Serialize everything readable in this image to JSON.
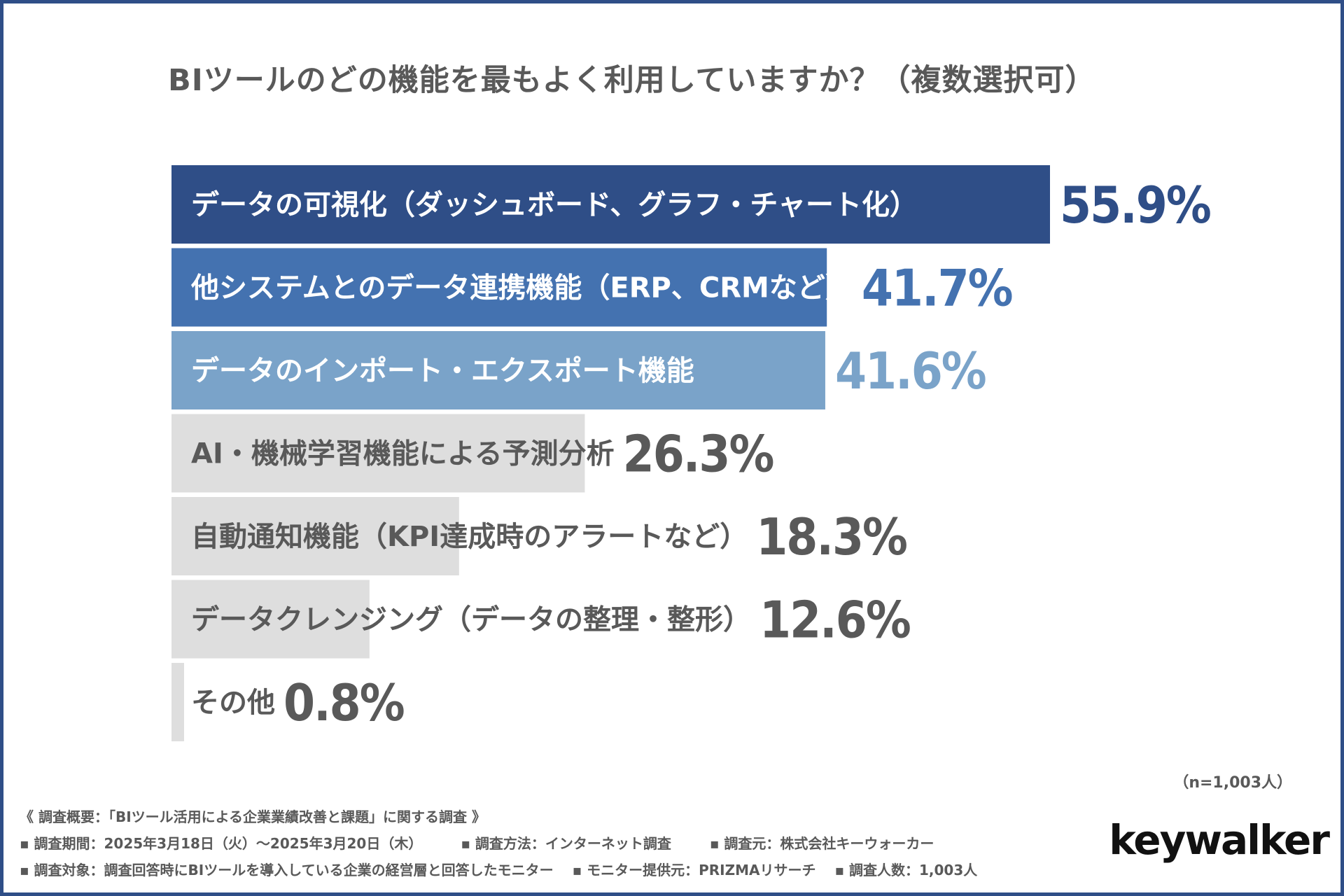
{
  "title": "BIツールのどの機能を最もよく利用していますか？（複数選択可）",
  "chart_data": {
    "type": "bar",
    "orientation": "horizontal",
    "title": "BIツールのどの機能を最もよく利用していますか？（複数選択可）",
    "categories": [
      "データの可視化（ダッシュボード、グラフ・チャート化）",
      "他システムとのデータ連携機能（ERP、CRMなど）",
      "データのインポート・エクスポート機能",
      "AI・機械学習機能による予測分析",
      "自動通知機能（KPI達成時のアラートなど）",
      "データクレンジング（データの整理・整形）",
      "その他"
    ],
    "values": [
      55.9,
      41.7,
      41.6,
      26.3,
      18.3,
      12.6,
      0.8
    ],
    "value_labels": [
      "55.9%",
      "41.7%",
      "41.6%",
      "26.3%",
      "18.3%",
      "12.6%",
      "0.8%"
    ],
    "bar_colors": [
      "#2f4e87",
      "#4472b0",
      "#7aa3c9",
      "#dedede",
      "#dedede",
      "#dedede",
      "#dedede"
    ],
    "value_colors": [
      "#2f4e87",
      "#4472b0",
      "#7aa3c9",
      "#595959",
      "#595959",
      "#595959",
      "#595959"
    ],
    "label_colors": [
      "#ffffff",
      "#ffffff",
      "#ffffff",
      "#595959",
      "#595959",
      "#595959",
      "#595959"
    ],
    "xlim": [
      0,
      55.9
    ],
    "xlabel": "",
    "ylabel": ""
  },
  "sample_size": "（n=1,003人）",
  "footer": {
    "overview": "《 調査概要：「BIツール活用による企業業績改善と課題」に関する調査 》",
    "period": "▪ 調査期間：2025年3月18日（火）～2025年3月20日（木）",
    "method": "▪ 調査方法：インターネット調査",
    "source": "▪ 調査元：株式会社キーウォーカー",
    "target": "▪ 調査対象：調査回答時にBIツールを導入している企業の経営層と回答したモニター",
    "provider": "▪ モニター提供元：PRIZMAリサーチ",
    "count": "▪ 調査人数：1,003人"
  },
  "logo": "keywalker",
  "colors": {
    "frame": "#2f4e87",
    "text": "#595959"
  }
}
